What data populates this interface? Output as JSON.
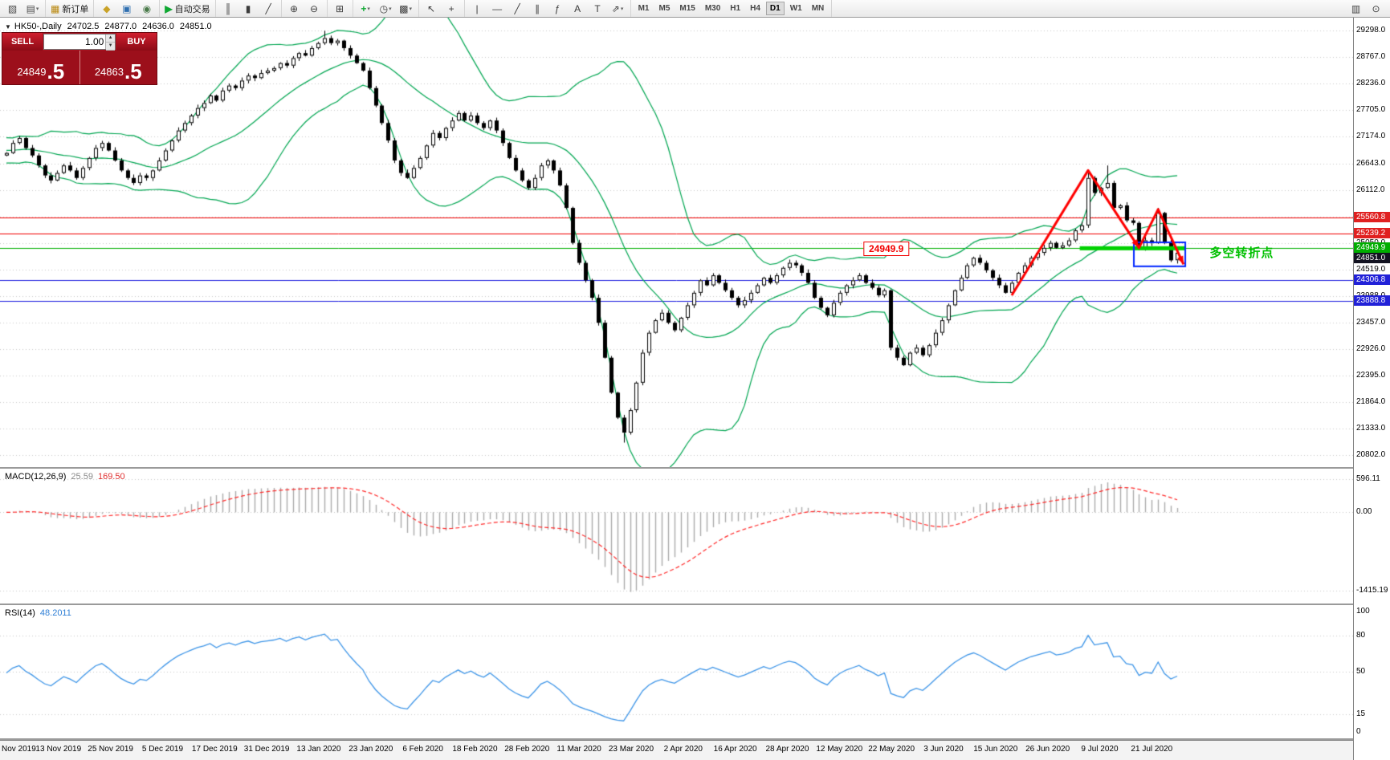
{
  "icons": {
    "panel_toggle": "▼",
    "spin_up": "▲",
    "spin_down": "▼"
  },
  "colors": {
    "panel_red": "#a8101e",
    "button_red": "#cf1e2e",
    "price_red": "#9c0f1b",
    "red_line": "#f20000",
    "green_line": "#00b000",
    "blue_line": "#2121e0",
    "bid_badge_bg": "#131321",
    "bollinger_green": "#00a651",
    "rsi_blue": "#3d95e8"
  },
  "toolbar": {
    "dropdown_glyph": "▾",
    "groups": [
      {
        "name": "charts",
        "buttons": [
          {
            "name": "new-chart-icon",
            "glyph": "▧",
            "color": "#4a4a4a"
          },
          {
            "name": "chart-profiles-icon",
            "glyph": "▤",
            "color": "#4a4a4a",
            "dropdown": true
          }
        ]
      },
      {
        "name": "order",
        "buttons": [
          {
            "name": "new-order-button",
            "glyph": "▦",
            "color": "#b8860b",
            "label": "新订单"
          }
        ]
      },
      {
        "name": "services",
        "buttons": [
          {
            "name": "expert-advisors-icon",
            "glyph": "◆",
            "color": "#c9a227"
          },
          {
            "name": "market-watch-icon",
            "glyph": "▣",
            "color": "#2f6fb0"
          },
          {
            "name": "navigator-icon",
            "glyph": "◉",
            "color": "#4a7a4a"
          }
        ]
      },
      {
        "name": "autotrade",
        "buttons": [
          {
            "name": "autotrading-button",
            "glyph": "▶",
            "color": "#0fa832",
            "label": "自动交易"
          }
        ]
      },
      {
        "name": "chart-type",
        "buttons": [
          {
            "name": "bar-chart-icon",
            "glyph": "║",
            "color": "#3c3c3c"
          },
          {
            "name": "candlestick-chart-icon",
            "glyph": "▮",
            "color": "#3c3c3c"
          },
          {
            "name": "line-chart-icon",
            "glyph": "╱",
            "color": "#3c3c3c"
          }
        ]
      },
      {
        "name": "zoom",
        "buttons": [
          {
            "name": "zoom-in-icon",
            "glyph": "⊕",
            "color": "#3c3c3c"
          },
          {
            "name": "zoom-out-icon",
            "glyph": "⊖",
            "color": "#3c3c3c"
          }
        ]
      },
      {
        "name": "windows",
        "buttons": [
          {
            "name": "tile-windows-icon",
            "glyph": "⊞",
            "color": "#3c3c3c"
          }
        ]
      },
      {
        "name": "chart-addons",
        "buttons": [
          {
            "name": "indicators-icon",
            "glyph": "+",
            "color": "#0fa832",
            "dropdown": true
          },
          {
            "name": "periods-icon",
            "glyph": "◷",
            "color": "#3c3c3c",
            "dropdown": true
          },
          {
            "name": "templates-icon",
            "glyph": "▩",
            "color": "#3c3c3c",
            "dropdown": true
          }
        ]
      },
      {
        "name": "pointer",
        "buttons": [
          {
            "name": "cursor-icon",
            "glyph": "↖",
            "color": "#3c3c3c"
          },
          {
            "name": "crosshair-icon",
            "glyph": "+",
            "color": "#3c3c3c"
          }
        ]
      },
      {
        "name": "draw",
        "buttons": [
          {
            "name": "vertical-line-icon",
            "glyph": "|",
            "color": "#3c3c3c"
          },
          {
            "name": "horizontal-line-icon",
            "glyph": "—",
            "color": "#3c3c3c"
          },
          {
            "name": "trendline-icon",
            "glyph": "╱",
            "color": "#3c3c3c"
          },
          {
            "name": "channel-icon",
            "glyph": "∥",
            "color": "#3c3c3c"
          },
          {
            "name": "fibonacci-icon",
            "glyph": "ƒ",
            "color": "#3c3c3c"
          },
          {
            "name": "text-icon",
            "glyph": "A",
            "color": "#3c3c3c"
          },
          {
            "name": "label-icon",
            "glyph": "T",
            "color": "#3c3c3c"
          },
          {
            "name": "arrows-icon",
            "glyph": "⇗",
            "color": "#3c3c3c",
            "dropdown": true
          }
        ]
      }
    ],
    "timeframes": [
      "M1",
      "M5",
      "M15",
      "M30",
      "H1",
      "H4",
      "D1",
      "W1",
      "MN"
    ],
    "active_timeframe": "D1",
    "right_icons": [
      {
        "name": "gallery-icon",
        "glyph": "▥",
        "color": "#3c3c3c"
      },
      {
        "name": "search-icon",
        "glyph": "⊙",
        "color": "#3c3c3c"
      }
    ]
  },
  "trade_panel": {
    "sell_label": "SELL",
    "buy_label": "BUY",
    "volume": "1.00",
    "sell_price": "24849.5",
    "buy_price": "24863.5"
  },
  "chart_data": {
    "type": "candlestick",
    "symbol_title": "HK50-,Daily",
    "ohlc_display": [
      "24702.5",
      "24877.0",
      "24636.0",
      "24851.0"
    ],
    "dates": [
      "Nov 2019",
      "13 Nov 2019",
      "25 Nov 2019",
      "5 Dec 2019",
      "17 Dec 2019",
      "31 Dec 2019",
      "13 Jan 2020",
      "23 Jan 2020",
      "6 Feb 2020",
      "18 Feb 2020",
      "28 Feb 2020",
      "11 Mar 2020",
      "23 Mar 2020",
      "2 Apr 2020",
      "16 Apr 2020",
      "28 Apr 2020",
      "12 May 2020",
      "22 May 2020",
      "3 Jun 2020",
      "15 Jun 2020",
      "26 Jun 2020",
      "9 Jul 2020",
      "21 Jul 2020"
    ],
    "closes": [
      26850,
      27050,
      27150,
      26950,
      26800,
      26600,
      26400,
      26300,
      26450,
      26600,
      26500,
      26350,
      26550,
      26750,
      26950,
      27050,
      26900,
      26700,
      26500,
      26350,
      26250,
      26400,
      26350,
      26500,
      26700,
      26900,
      27100,
      27300,
      27450,
      27600,
      27750,
      27850,
      28000,
      27900,
      28100,
      28200,
      28150,
      28300,
      28400,
      28350,
      28450,
      28500,
      28550,
      28650,
      28600,
      28750,
      28850,
      28800,
      28950,
      29050,
      29150,
      29050,
      29100,
      28950,
      28800,
      28650,
      28500,
      28150,
      27800,
      27450,
      27100,
      26700,
      26450,
      26350,
      26550,
      26750,
      27000,
      27250,
      27150,
      27350,
      27500,
      27650,
      27500,
      27600,
      27450,
      27350,
      27500,
      27300,
      27050,
      26750,
      26500,
      26300,
      26150,
      26350,
      26600,
      26700,
      26500,
      26200,
      25750,
      25050,
      24650,
      24300,
      23950,
      23450,
      22750,
      22050,
      21550,
      21250,
      21700,
      22250,
      22850,
      23250,
      23500,
      23650,
      23450,
      23300,
      23550,
      23800,
      24050,
      24300,
      24200,
      24400,
      24250,
      24100,
      23950,
      23800,
      23900,
      24050,
      24200,
      24350,
      24250,
      24400,
      24550,
      24650,
      24600,
      24450,
      24250,
      23950,
      23750,
      23600,
      23850,
      24050,
      24200,
      24300,
      24400,
      24250,
      24150,
      24000,
      24100,
      22950,
      22750,
      22600,
      22850,
      22950,
      22800,
      23000,
      23250,
      23500,
      23800,
      24100,
      24350,
      24600,
      24750,
      24650,
      24500,
      24350,
      24200,
      24050,
      24250,
      24450,
      24600,
      24750,
      24850,
      24950,
      25050,
      24950,
      25000,
      25100,
      25300,
      25400,
      26350,
      26050,
      26150,
      26250,
      25750,
      25800,
      25500,
      25450,
      24950,
      25100,
      25050,
      25650,
      25050,
      24700,
      24851
    ],
    "first_open": 26800,
    "key_extremes": [
      {
        "i": 50,
        "high": 29298
      },
      {
        "i": 97,
        "low": 21050
      },
      {
        "i": 170,
        "high": 26450
      },
      {
        "i": 173,
        "high": 26600
      },
      {
        "i": 181,
        "high": 25750
      },
      {
        "i": 184,
        "open": 24702.5,
        "high": 24877.0,
        "low": 24636.0,
        "close": 24851.0
      }
    ],
    "price_axis": {
      "max": 29560,
      "min": 20560,
      "labels": [
        "29298.0",
        "28767.0",
        "28236.0",
        "27705.0",
        "27174.0",
        "26643.0",
        "26112.0",
        "25581.0",
        "25050.0",
        "24519.0",
        "23988.0",
        "23457.0",
        "22926.0",
        "22395.0",
        "21864.0",
        "21333.0",
        "20802.0"
      ]
    },
    "hlines": [
      {
        "price": 25560.8,
        "color": "#f20000",
        "badge": "25560.8",
        "badge_bg": "#e02020"
      },
      {
        "price": 25239.2,
        "color": "#f20000",
        "badge": "25239.2",
        "badge_bg": "#e02020"
      },
      {
        "price": 24949.9,
        "color": "#00b000",
        "badge": "24949.9",
        "badge_bg": "#00ad00"
      },
      {
        "price": 24306.8,
        "color": "#2121e0",
        "badge": "24306.8",
        "badge_bg": "#2121d8"
      },
      {
        "price": 23888.8,
        "color": "#2121e0",
        "badge": "23888.8",
        "badge_bg": "#2121d8"
      }
    ],
    "bid_badge": {
      "price": 24851.0,
      "text": "24851.0"
    },
    "bollinger": {
      "period": 20,
      "deviation": 2
    },
    "annotations": {
      "price_flag": {
        "text": "24949.9",
        "x_frac": 0.655,
        "price": 24949.9
      },
      "green_bar": {
        "x_frac_start": 0.798,
        "x_frac_end": 0.876,
        "price": 24949.9,
        "color": "#00d200"
      },
      "cn_label": {
        "text": "多空转折点",
        "x_frac": 0.894,
        "price": 24880
      },
      "blue_rect": {
        "x_frac_start": 0.838,
        "x_frac_end": 0.876,
        "price_top": 25060,
        "price_bottom": 24580,
        "color": "#0026ff"
      },
      "zigzag": {
        "color": "#ff0000",
        "points": [
          {
            "i": 158,
            "p": 24000
          },
          {
            "i": 170,
            "p": 26500
          },
          {
            "i": 178,
            "p": 24950
          },
          {
            "i": 181,
            "p": 25720
          },
          {
            "i": 185,
            "p": 24620
          }
        ],
        "arrowheads": [
          2,
          4
        ]
      }
    },
    "macd": {
      "label": "MACD(12,26,9)",
      "value_main": "25.59",
      "value_signal": "169.50",
      "axis_labels": [
        "596.11",
        "0.00",
        "-1415.19"
      ],
      "axis_values": [
        596.11,
        0,
        -1415.19
      ],
      "range": [
        -1560,
        700
      ],
      "hist_color": "#ababab",
      "signal_color": "#ff2a2a"
    },
    "rsi": {
      "label": "RSI(14)",
      "value": "48.2011",
      "period": 14,
      "axis_labels": [
        "100",
        "80",
        "50",
        "15",
        "0"
      ],
      "axis_values": [
        100,
        80,
        50,
        15,
        0
      ],
      "levels": [
        80,
        50,
        15
      ],
      "range": [
        0,
        100
      ]
    }
  }
}
